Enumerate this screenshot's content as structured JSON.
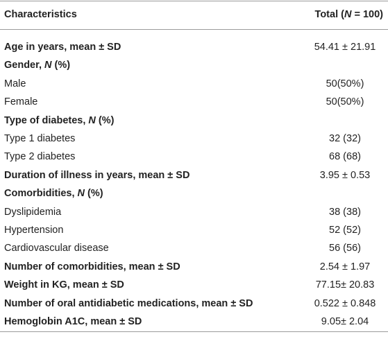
{
  "table": {
    "header": {
      "label": "Characteristics",
      "total": [
        "Total (",
        "N",
        " = 100)"
      ]
    },
    "rows": [
      {
        "label": [
          "Age in years, mean ± SD"
        ],
        "value": "54.41 ± 21.91",
        "bold": true
      },
      {
        "label": [
          "Gender, ",
          "N",
          " (%)"
        ],
        "bold": true
      },
      {
        "label": [
          "Male"
        ],
        "value": "50(50%)",
        "bold": false
      },
      {
        "label": [
          "Female"
        ],
        "value": "50(50%)",
        "bold": false
      },
      {
        "label": [
          "Type of diabetes, ",
          "N",
          " (%)"
        ],
        "bold": true
      },
      {
        "label": [
          "Type 1 diabetes"
        ],
        "value": "32 (32)",
        "bold": false
      },
      {
        "label": [
          "Type 2 diabetes"
        ],
        "value": "68 (68)",
        "bold": false
      },
      {
        "label": [
          "Duration of illness in years, mean ± SD"
        ],
        "value": "3.95 ± 0.53",
        "bold": true
      },
      {
        "label": [
          "Comorbidities, ",
          "N",
          " (%)"
        ],
        "bold": true
      },
      {
        "label": [
          "Dyslipidemia"
        ],
        "value": "38 (38)",
        "bold": false
      },
      {
        "label": [
          "Hypertension"
        ],
        "value": "52 (52)",
        "bold": false
      },
      {
        "label": [
          "Cardiovascular disease"
        ],
        "value": "56 (56)",
        "bold": false
      },
      {
        "label": [
          "Number of comorbidities, mean ± SD"
        ],
        "value": "2.54 ± 1.97",
        "bold": true
      },
      {
        "label": [
          "Weight in KG, mean ± SD"
        ],
        "value": "77.15± 20.83",
        "bold": true
      },
      {
        "label": [
          "Number of oral antidiabetic medications, mean ± SD"
        ],
        "value": "0.522 ± 0.848",
        "bold": true
      },
      {
        "label": [
          "Hemoglobin A1C, mean ± SD"
        ],
        "value": "9.05± 2.04",
        "bold": true
      }
    ]
  }
}
